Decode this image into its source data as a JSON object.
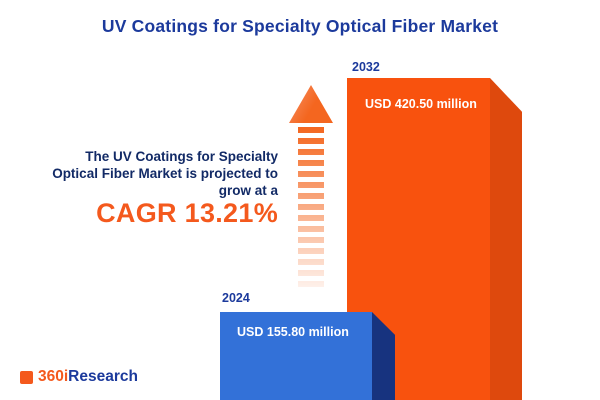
{
  "title": "UV Coatings for Specialty Optical Fiber Market",
  "annotation": {
    "line1": "The UV Coatings for Specialty",
    "line2": "Optical Fiber Market is projected to",
    "line3": "grow at a",
    "cagr": "CAGR 13.21%"
  },
  "bars": {
    "y2024": {
      "year": "2024",
      "value_label": "USD 155.80 million"
    },
    "y2032": {
      "year": "2032",
      "value_label": "USD 420.50 million"
    }
  },
  "logo": {
    "part1": "360i",
    "part2": "Research"
  },
  "colors": {
    "navy": "#1c3a9c",
    "dark_navy_text": "#122a66",
    "orange": "#f4591d",
    "bar_blue_front": "#3371d8",
    "bar_blue_side": "#17337f",
    "bar_orange_front": "#f8520e",
    "bar_orange_side": "#de490d"
  },
  "chart_data": {
    "type": "bar",
    "categories": [
      "2024",
      "2032"
    ],
    "values": [
      155.8,
      420.5
    ],
    "value_labels": [
      "USD 155.80 million",
      "USD 420.50 million"
    ],
    "unit": "USD million",
    "title": "UV Coatings for Specialty Optical Fiber Market",
    "cagr_percent": 13.21,
    "annotations": [
      "The UV Coatings for Specialty Optical Fiber Market is projected to grow at a CAGR 13.21%"
    ],
    "legend": false,
    "grid": false,
    "bar_colors": [
      "#3371d8",
      "#f8520e"
    ]
  }
}
